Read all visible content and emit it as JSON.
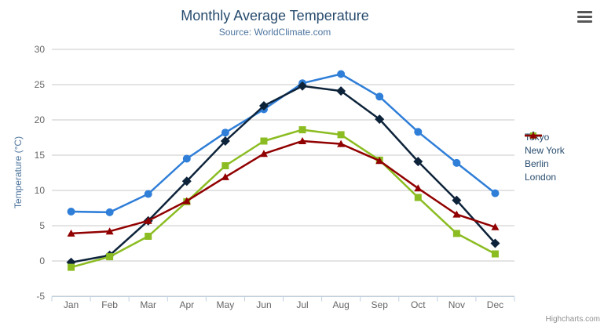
{
  "chart_data": {
    "type": "line",
    "title": "Monthly Average Temperature",
    "subtitle": "Source: WorldClimate.com",
    "xlabel": "",
    "ylabel": "Temperature (°C)",
    "ylim": [
      -5,
      30
    ],
    "ytick_interval": 5,
    "grid": true,
    "legend_position": "right",
    "categories": [
      "Jan",
      "Feb",
      "Mar",
      "Apr",
      "May",
      "Jun",
      "Jul",
      "Aug",
      "Sep",
      "Oct",
      "Nov",
      "Dec"
    ],
    "series": [
      {
        "name": "Tokyo",
        "color": "#2f7ed8",
        "marker": "circle",
        "values": [
          7.0,
          6.9,
          9.5,
          14.5,
          18.2,
          21.5,
          25.2,
          26.5,
          23.3,
          18.3,
          13.9,
          9.6
        ]
      },
      {
        "name": "New York",
        "color": "#0d233a",
        "marker": "diamond",
        "values": [
          -0.2,
          0.8,
          5.7,
          11.3,
          17.0,
          22.0,
          24.8,
          24.1,
          20.1,
          14.1,
          8.6,
          2.5
        ]
      },
      {
        "name": "Berlin",
        "color": "#8bbc21",
        "marker": "square",
        "values": [
          -0.9,
          0.6,
          3.5,
          8.4,
          13.5,
          17.0,
          18.6,
          17.9,
          14.3,
          9.0,
          3.9,
          1.0
        ]
      },
      {
        "name": "London",
        "color": "#910000",
        "marker": "triangle",
        "values": [
          3.9,
          4.2,
          5.7,
          8.5,
          11.9,
          15.2,
          17.0,
          16.6,
          14.2,
          10.3,
          6.6,
          4.8
        ]
      }
    ],
    "colors": {
      "grid_line": "#c8c8c8",
      "axis_line": "#c0d0e0",
      "axis_label": "#666666",
      "title": "#274b6d",
      "subtitle": "#4d759e",
      "legend_text": "#274b6d"
    }
  },
  "export_menu": {
    "icon": "hamburger-icon"
  },
  "credits": {
    "text": "Highcharts.com"
  }
}
